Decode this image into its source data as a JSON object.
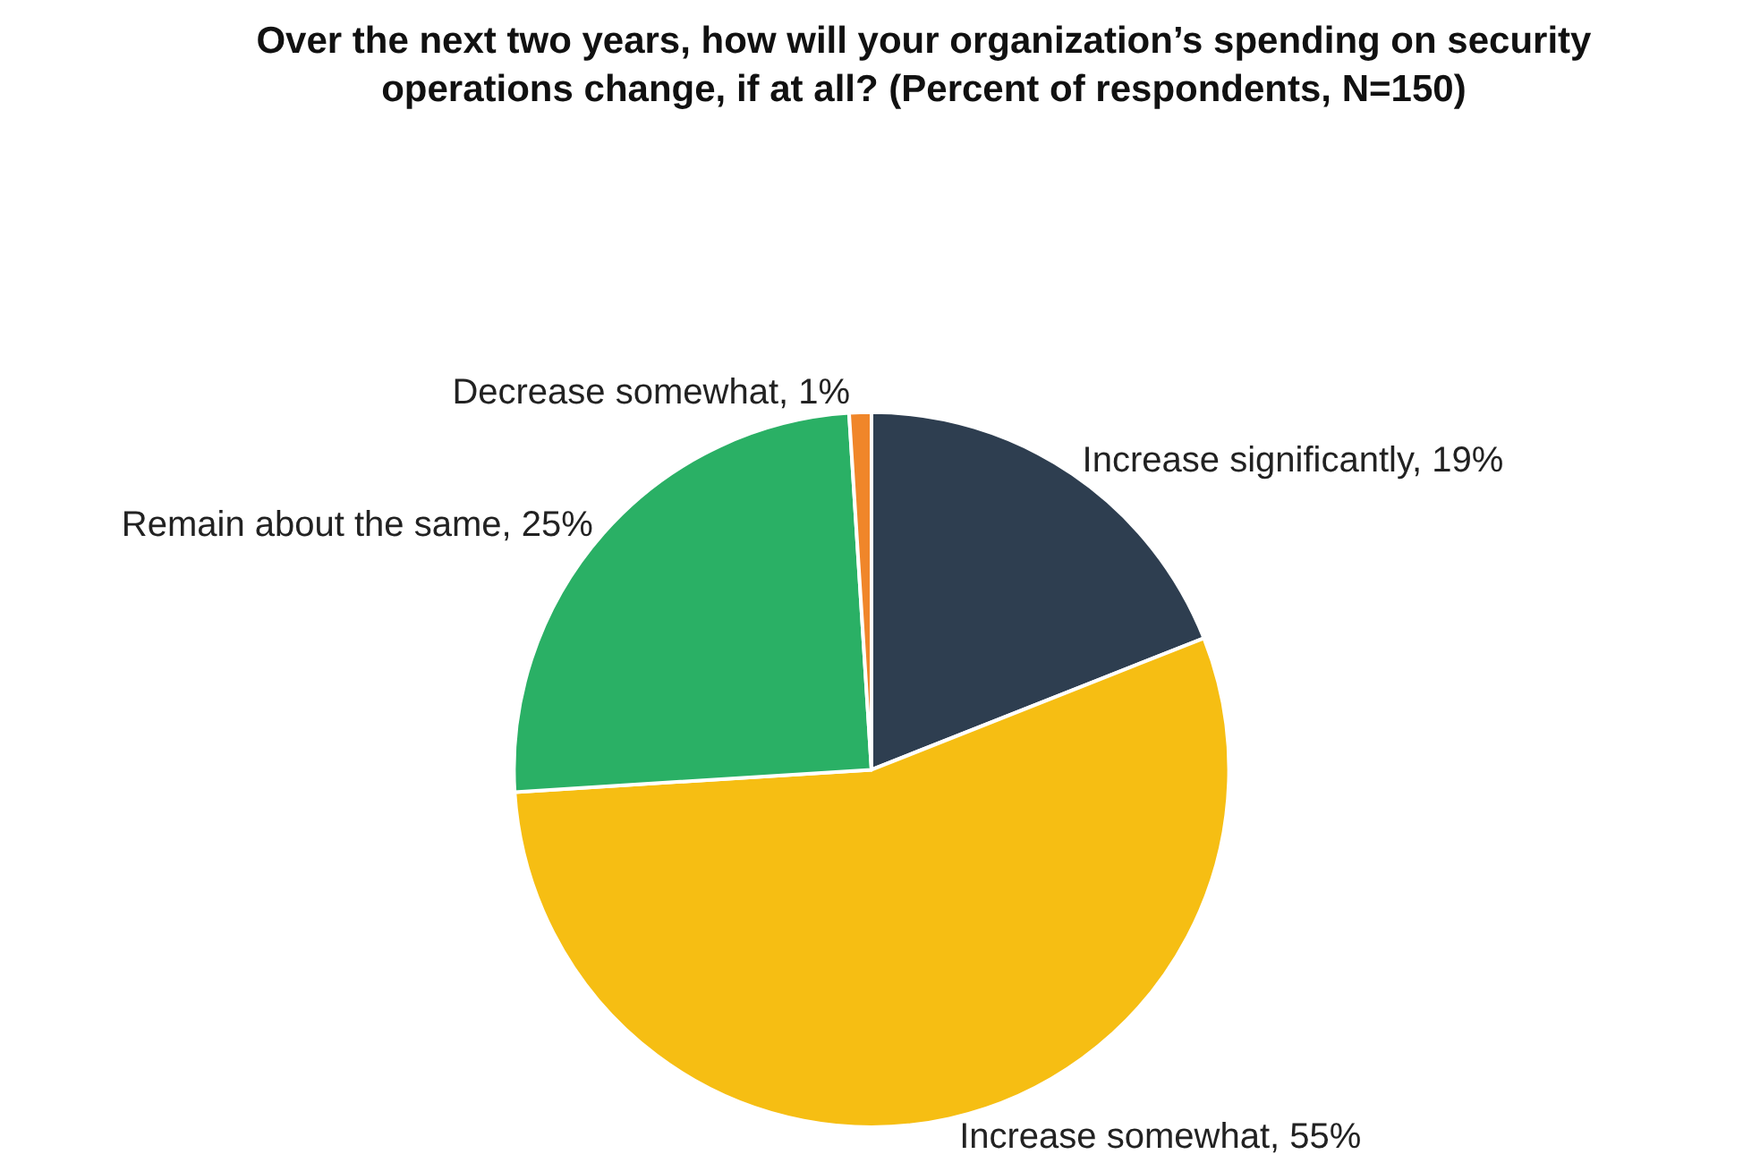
{
  "chart_data": {
    "type": "pie",
    "title": "Over the next two years, how will your organization’s spending on security operations change, if at all? (Percent of respondents, N=150)",
    "categories": [
      "Increase significantly",
      "Increase somewhat",
      "Remain about the same",
      "Decrease somewhat"
    ],
    "values": [
      19,
      55,
      25,
      1
    ],
    "colors": [
      "#2e3e50",
      "#f6be13",
      "#2ab065",
      "#f0862a"
    ],
    "value_labels": [
      "19%",
      "55%",
      "25%",
      "1%"
    ],
    "legend": false
  }
}
